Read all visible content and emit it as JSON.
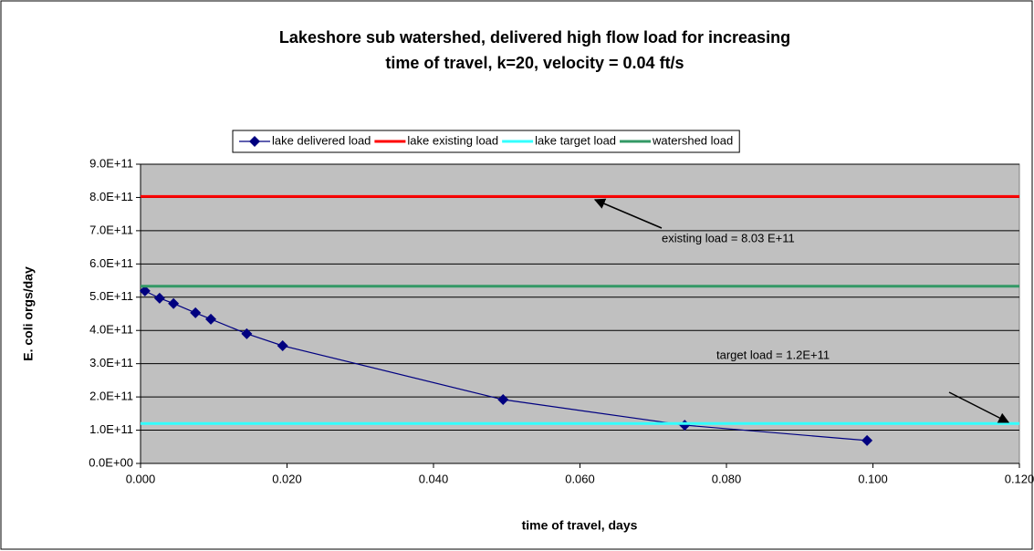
{
  "chart_data": {
    "type": "line",
    "title": [
      "Lakeshore sub watershed, delivered high flow load for increasing",
      "time of travel, k=20,  velocity = 0.04 ft/s"
    ],
    "x_label": "time of travel, days",
    "y_label": "E. coli orgs/day",
    "xlim": [
      0,
      0.12
    ],
    "ylim": [
      0,
      900000000000
    ],
    "xticks": [
      {
        "value": 0,
        "label": "0.000"
      },
      {
        "value": 0.02,
        "label": "0.020"
      },
      {
        "value": 0.04,
        "label": "0.040"
      },
      {
        "value": 0.06,
        "label": "0.060"
      },
      {
        "value": 0.08,
        "label": "0.080"
      },
      {
        "value": 0.1,
        "label": "0.100"
      },
      {
        "value": 0.12,
        "label": "0.120"
      }
    ],
    "yticks": [
      {
        "value": 0,
        "label": "0.0E+00"
      },
      {
        "value": 100000000000,
        "label": "1.0E+11"
      },
      {
        "value": 200000000000,
        "label": "2.0E+11"
      },
      {
        "value": 300000000000,
        "label": "3.0E+11"
      },
      {
        "value": 400000000000,
        "label": "4.0E+11"
      },
      {
        "value": 500000000000,
        "label": "5.0E+11"
      },
      {
        "value": 600000000000,
        "label": "6.0E+11"
      },
      {
        "value": 700000000000,
        "label": "7.0E+11"
      },
      {
        "value": 800000000000,
        "label": "8.0E+11"
      },
      {
        "value": 900000000000,
        "label": "9.0E+11"
      }
    ],
    "grid": true,
    "legend": "top",
    "series": [
      {
        "name": "lake delivered load",
        "color": "#000080",
        "marker": "diamond",
        "x": [
          0.0006,
          0.0026,
          0.0045,
          0.0075,
          0.0096,
          0.0145,
          0.0194,
          0.0495,
          0.0743,
          0.0992
        ],
        "values": [
          519000000000,
          497000000000,
          481000000000,
          453000000000,
          434000000000,
          390000000000,
          354000000000,
          192000000000,
          115000000000,
          69000000000
        ]
      },
      {
        "name": "lake existing load",
        "color": "#ff0000",
        "values": [
          803000000000
        ]
      },
      {
        "name": "lake target load",
        "color": "#33ffff",
        "values": [
          120000000000
        ]
      },
      {
        "name": "watershed load",
        "color": "#339966",
        "values": [
          533000000000
        ]
      }
    ],
    "annotations": [
      "existing load = 8.03 E+11",
      "target load = 1.2E+11"
    ]
  }
}
